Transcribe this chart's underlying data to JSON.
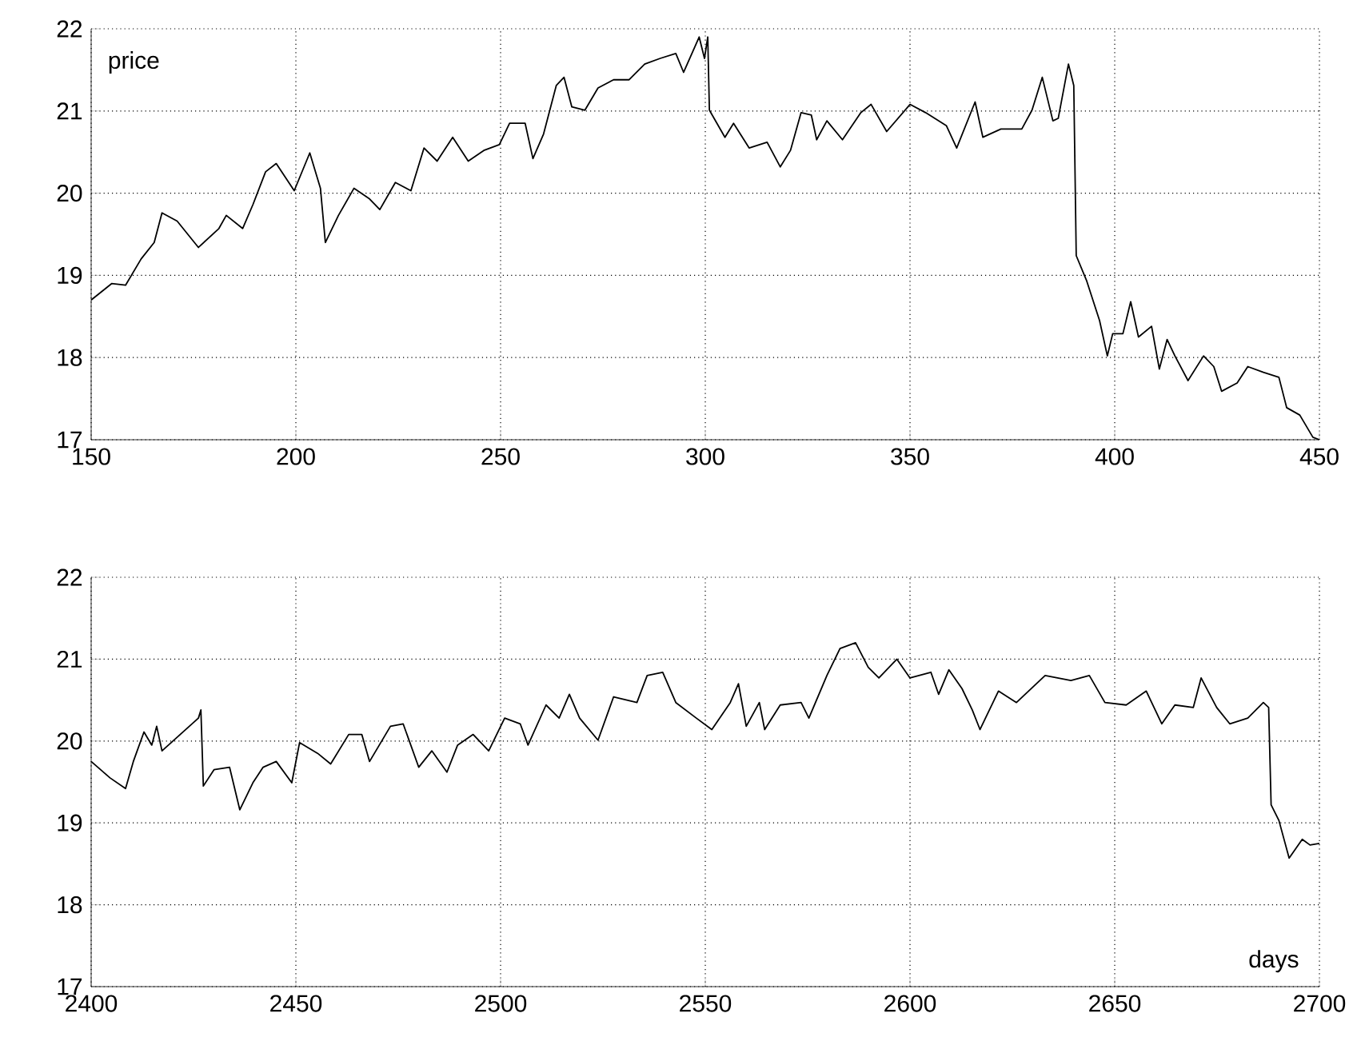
{
  "chart_data": [
    {
      "type": "line",
      "ylabel": "price",
      "color": "#000000",
      "grid": true,
      "xlim": [
        150,
        450
      ],
      "ylim": [
        17,
        22
      ],
      "xticks": [
        150,
        200,
        250,
        300,
        350,
        400,
        450
      ],
      "yticks": [
        17,
        18,
        19,
        20,
        21,
        22
      ],
      "x": [
        150,
        155,
        158.4,
        162.2,
        165.4,
        167.3,
        171,
        176.2,
        181.2,
        183,
        187,
        189.5,
        192.6,
        195.2,
        199.6,
        203.4,
        206,
        207.2,
        210.4,
        214.2,
        218,
        220.5,
        224.3,
        228.1,
        231.3,
        234.5,
        238.3,
        242.1,
        245.9,
        249.7,
        252.2,
        256,
        257.9,
        260.5,
        263.6,
        265.5,
        267.4,
        270.6,
        273.8,
        277.6,
        281.4,
        285.2,
        289,
        292.8,
        294.7,
        298.5,
        299.8,
        300.6,
        301,
        304.8,
        306.9,
        310.7,
        315.1,
        318.3,
        320.8,
        323.4,
        325.9,
        327.2,
        329.7,
        333.5,
        338,
        340.5,
        344.3,
        350,
        353.8,
        358.9,
        361.4,
        365.9,
        367.8,
        372.2,
        377.3,
        379.8,
        382.3,
        384.9,
        386.2,
        388.7,
        390,
        390.6,
        393.1,
        396.3,
        398.2,
        399.5,
        402,
        403.9,
        405.8,
        409,
        410.9,
        412.8,
        414.7,
        417.9,
        421.7,
        424.2,
        426.1,
        429.9,
        432.5,
        436.3,
        440.1,
        442,
        445.2,
        448.4,
        450
      ],
      "values": [
        18.7,
        18.9,
        18.88,
        19.2,
        19.4,
        19.76,
        19.66,
        19.34,
        19.57,
        19.73,
        19.57,
        19.86,
        20.26,
        20.36,
        20.03,
        20.49,
        20.06,
        19.4,
        19.73,
        20.06,
        19.93,
        19.8,
        20.13,
        20.03,
        20.55,
        20.39,
        20.68,
        20.39,
        20.52,
        20.59,
        20.85,
        20.85,
        20.42,
        20.72,
        21.31,
        21.41,
        21.05,
        21.01,
        21.28,
        21.38,
        21.38,
        21.57,
        21.64,
        21.7,
        21.47,
        21.9,
        21.64,
        21.9,
        21.01,
        20.68,
        20.85,
        20.55,
        20.62,
        20.32,
        20.52,
        20.98,
        20.95,
        20.65,
        20.88,
        20.65,
        20.98,
        21.08,
        20.75,
        21.08,
        20.98,
        20.82,
        20.55,
        21.11,
        20.68,
        20.78,
        20.78,
        21.01,
        21.41,
        20.88,
        20.91,
        21.57,
        21.31,
        19.24,
        18.94,
        18.45,
        18.02,
        18.29,
        18.29,
        18.68,
        18.25,
        18.38,
        17.86,
        18.22,
        18.02,
        17.72,
        18.02,
        17.89,
        17.59,
        17.69,
        17.89,
        17.82,
        17.76,
        17.39,
        17.3,
        17.03,
        17.0
      ]
    },
    {
      "type": "line",
      "xlabel": "days",
      "color": "#000000",
      "grid": true,
      "xlim": [
        2400,
        2700
      ],
      "ylim": [
        17,
        22
      ],
      "xticks": [
        2400,
        2450,
        2500,
        2550,
        2600,
        2650,
        2700
      ],
      "yticks": [
        17,
        18,
        19,
        20,
        21,
        22
      ],
      "x": [
        2400,
        2404.6,
        2408.4,
        2410.3,
        2412.9,
        2414.8,
        2416,
        2417.3,
        2421.1,
        2426.2,
        2426.8,
        2427.4,
        2430,
        2433.8,
        2436.3,
        2439.5,
        2442,
        2445.2,
        2449,
        2450.9,
        2455.3,
        2458.5,
        2462.9,
        2466.1,
        2468,
        2473.1,
        2476.2,
        2480,
        2483.2,
        2486.9,
        2489.5,
        2493.3,
        2497.1,
        2501,
        2504.8,
        2506.7,
        2511.1,
        2514.3,
        2516.8,
        2519.3,
        2523.8,
        2527.6,
        2533.3,
        2535.8,
        2539.6,
        2542.8,
        2547.8,
        2551.6,
        2556.1,
        2558.1,
        2560,
        2563.2,
        2564.5,
        2568.3,
        2573.4,
        2575.3,
        2579.7,
        2582.9,
        2586.7,
        2589.8,
        2592.4,
        2596.8,
        2600,
        2605.1,
        2607,
        2609.5,
        2612.7,
        2615.2,
        2617.1,
        2621.6,
        2626,
        2633,
        2639.3,
        2643.8,
        2647.6,
        2652.8,
        2657.7,
        2661.5,
        2664.7,
        2669.2,
        2671.1,
        2674.9,
        2678.1,
        2682.5,
        2686.3,
        2687.6,
        2688.2,
        2690.1,
        2692.6,
        2695.8,
        2697.7,
        2700
      ],
      "values": [
        19.75,
        19.55,
        19.42,
        19.75,
        20.11,
        19.95,
        20.18,
        19.88,
        20.05,
        20.28,
        20.38,
        19.45,
        19.65,
        19.68,
        19.16,
        19.49,
        19.68,
        19.75,
        19.49,
        19.98,
        19.85,
        19.72,
        20.08,
        20.08,
        19.75,
        20.18,
        20.21,
        19.68,
        19.88,
        19.62,
        19.95,
        20.08,
        19.88,
        20.28,
        20.21,
        19.95,
        20.44,
        20.28,
        20.57,
        20.28,
        20.01,
        20.54,
        20.47,
        20.8,
        20.84,
        20.47,
        20.28,
        20.14,
        20.47,
        20.7,
        20.18,
        20.47,
        20.14,
        20.44,
        20.47,
        20.28,
        20.8,
        21.13,
        21.2,
        20.9,
        20.77,
        21.0,
        20.77,
        20.84,
        20.57,
        20.87,
        20.64,
        20.38,
        20.14,
        20.61,
        20.47,
        20.8,
        20.74,
        20.8,
        20.47,
        20.44,
        20.61,
        20.21,
        20.44,
        20.41,
        20.77,
        20.41,
        20.21,
        20.28,
        20.47,
        20.41,
        19.22,
        19.03,
        18.57,
        18.8,
        18.73,
        18.75
      ]
    }
  ]
}
